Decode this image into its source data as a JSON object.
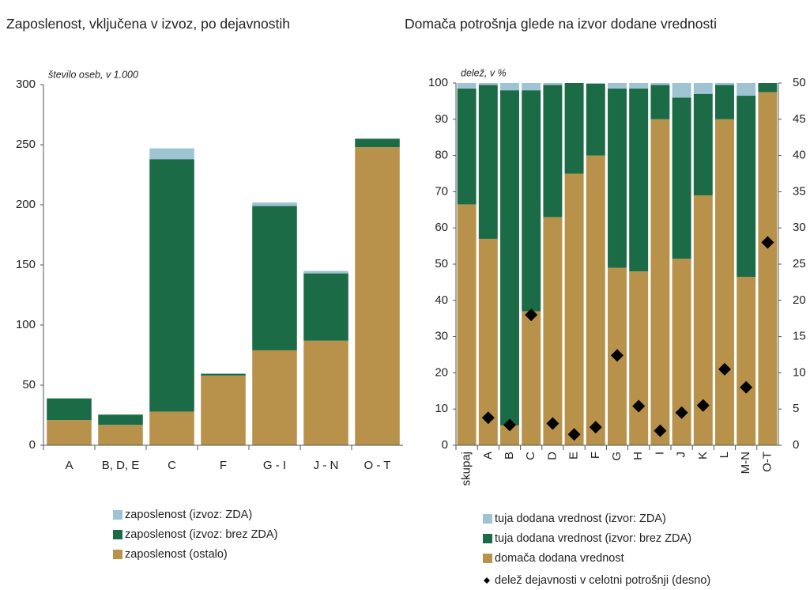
{
  "chart_data": [
    {
      "type": "bar",
      "stacked": true,
      "title": "Zaposlenost, vključena v izvoz, po dejavnostih",
      "y_label": "število oseb, v 1.000",
      "categories": [
        "A",
        "B, D, E",
        "C",
        "F",
        "G - I",
        "J - N",
        "O - T"
      ],
      "series": [
        {
          "name": "zaposlenost (izvoz: ZDA)",
          "color": "#9ec3d3",
          "values": [
            0,
            0,
            9,
            0,
            3,
            2,
            0
          ]
        },
        {
          "name": "zaposlenost (izvoz: brez ZDA)",
          "color": "#1b6b47",
          "values": [
            18,
            8.5,
            210,
            1.5,
            120,
            56,
            7
          ]
        },
        {
          "name": "zaposlenost (ostalo)",
          "color": "#b8924a",
          "values": [
            21,
            17,
            28,
            58,
            79,
            87,
            248
          ]
        }
      ],
      "ylim": [
        0,
        300
      ],
      "yticks": [
        0,
        50,
        100,
        150,
        200,
        250,
        300
      ]
    },
    {
      "type": "bar",
      "stacked": true,
      "title": "Domača potrošnja glede na izvor dodane vrednosti",
      "y_label": "delež, v %",
      "categories": [
        "skupaj",
        "A",
        "B",
        "C",
        "D",
        "E",
        "F",
        "G",
        "H",
        "I",
        "J",
        "K",
        "L",
        "M-N",
        "O-T"
      ],
      "series": [
        {
          "name": "tuja dodana vrednost (izvor: ZDA)",
          "color": "#9ec3d3",
          "values": [
            1.5,
            0.5,
            2,
            2,
            0.5,
            0,
            0.2,
            1.5,
            1.5,
            0.5,
            4,
            3,
            0.5,
            3.5,
            0
          ]
        },
        {
          "name": "tuja dodana vrednost (izvor: brez ZDA)",
          "color": "#1b6b47",
          "values": [
            32,
            42.5,
            92.5,
            61,
            36.5,
            25,
            19.8,
            49.5,
            50.5,
            9.5,
            44.5,
            28,
            9.5,
            50,
            2.5
          ]
        },
        {
          "name": "domača dodana vrednost",
          "color": "#b8924a",
          "values": [
            66.5,
            57,
            5.5,
            37,
            63,
            75,
            80,
            49,
            48,
            90,
            51.5,
            69,
            90,
            46.5,
            97.5
          ]
        },
        {
          "name": "delež dejavnosti v celotni potrošnji (desno)",
          "color": "#000000",
          "axis": "y2",
          "values": [
            null,
            3.8,
            2.8,
            18,
            3,
            1.5,
            2.5,
            12.4,
            5.4,
            2,
            4.5,
            5.5,
            10.5,
            8,
            28
          ]
        }
      ],
      "ylim": [
        0,
        100
      ],
      "yticks": [
        0,
        10,
        20,
        30,
        40,
        50,
        60,
        70,
        80,
        90,
        100
      ],
      "y2lim": [
        0,
        50
      ],
      "y2ticks": [
        0,
        5,
        10,
        15,
        20,
        25,
        30,
        35,
        40,
        45,
        50
      ]
    }
  ]
}
